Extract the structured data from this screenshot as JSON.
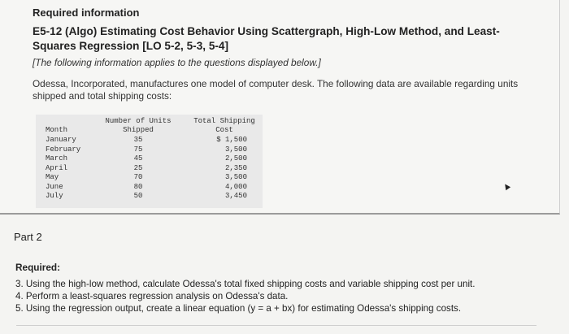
{
  "header": {
    "required_info": "Required information",
    "title": "E5-12 (Algo) Estimating Cost Behavior Using Scattergraph, High-Low Method, and Least-Squares Regression [LO 5-2, 5-3, 5-4]",
    "note": "[The following information applies to the questions displayed below.]",
    "description": "Odessa, Incorporated, manufactures one model of computer desk. The following data are available regarding units shipped and total shipping costs:"
  },
  "table": {
    "headers": {
      "month": "Month",
      "units_line1": "Number of Units",
      "units_line2": "Shipped",
      "cost_line1": "Total Shipping",
      "cost_line2": "Cost"
    },
    "rows": [
      {
        "month": "January",
        "units": "35",
        "cost": "$ 1,500"
      },
      {
        "month": "February",
        "units": "75",
        "cost": "3,500"
      },
      {
        "month": "March",
        "units": "45",
        "cost": "2,500"
      },
      {
        "month": "April",
        "units": "25",
        "cost": "2,350"
      },
      {
        "month": "May",
        "units": "70",
        "cost": "3,500"
      },
      {
        "month": "June",
        "units": "80",
        "cost": "4,000"
      },
      {
        "month": "July",
        "units": "50",
        "cost": "3,450"
      }
    ]
  },
  "part": {
    "label": "Part 2",
    "required_label": "Required:",
    "questions": [
      "3. Using the high-low method, calculate Odessa's total fixed shipping costs and variable shipping cost per unit.",
      "4. Perform a least-squares regression analysis on Odessa's data.",
      "5. Using the regression output, create a linear equation (y = a + bx) for estimating Odessa's shipping costs."
    ]
  },
  "icons": {
    "cursor": "mouse-pointer-icon"
  }
}
